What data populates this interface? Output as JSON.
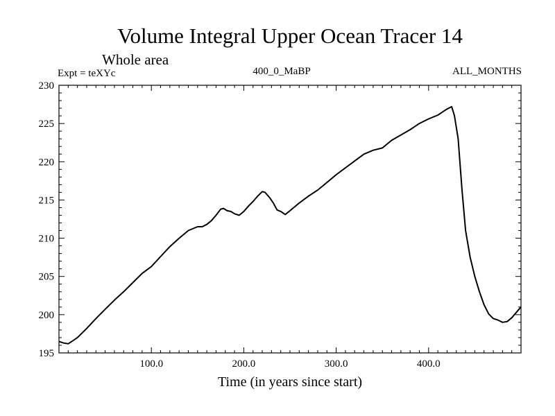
{
  "chart_data": {
    "type": "line",
    "title": "Volume Integral Upper Ocean Tracer 14",
    "subtitle": "Whole area",
    "experiment_label": "Expt = teXYc",
    "center_label": "400_0_MaBP",
    "right_label": "ALL_MONTHS",
    "xlabel": "Time (in years since start)",
    "ylabel": "",
    "xlim": [
      0,
      500
    ],
    "ylim": [
      195,
      230
    ],
    "x_ticks": [
      100,
      200,
      300,
      400
    ],
    "x_tick_labels": [
      "100.0",
      "200.0",
      "300.0",
      "400.0"
    ],
    "y_ticks": [
      195,
      200,
      205,
      210,
      215,
      220,
      225,
      230
    ],
    "y_tick_labels": [
      "195",
      "200",
      "205",
      "210",
      "215",
      "220",
      "225",
      "230"
    ],
    "grid": false,
    "legend": "none",
    "line_color": "#000000",
    "series": [
      {
        "x": [
          0,
          5,
          10,
          15,
          20,
          30,
          40,
          50,
          60,
          70,
          80,
          90,
          100,
          110,
          120,
          130,
          140,
          150,
          155,
          160,
          165,
          170,
          175,
          178,
          182,
          186,
          190,
          195,
          200,
          205,
          210,
          215,
          220,
          223,
          228,
          232,
          236,
          240,
          245,
          250,
          260,
          270,
          280,
          290,
          300,
          310,
          320,
          330,
          340,
          350,
          360,
          370,
          380,
          390,
          400,
          410,
          415,
          420,
          425,
          428,
          432,
          436,
          440,
          445,
          450,
          455,
          460,
          465,
          470,
          475,
          480,
          485,
          490,
          495,
          500
        ],
        "y": [
          196.5,
          196.3,
          196.2,
          196.6,
          197.0,
          198.2,
          199.5,
          200.7,
          201.9,
          203.0,
          204.2,
          205.4,
          206.3,
          207.6,
          208.9,
          210.0,
          211.0,
          211.5,
          211.5,
          211.8,
          212.3,
          213.0,
          213.8,
          213.9,
          213.6,
          213.5,
          213.2,
          213.0,
          213.5,
          214.2,
          214.8,
          215.5,
          216.1,
          216.0,
          215.3,
          214.6,
          213.7,
          213.5,
          213.1,
          213.6,
          214.6,
          215.5,
          216.3,
          217.3,
          218.3,
          219.2,
          220.1,
          221.0,
          221.5,
          221.8,
          222.8,
          223.5,
          224.2,
          225.0,
          225.6,
          226.1,
          226.5,
          226.9,
          227.2,
          226.0,
          223.0,
          216.5,
          211.0,
          207.5,
          205.0,
          203.0,
          201.3,
          200.1,
          199.5,
          199.3,
          199.0,
          199.1,
          199.6,
          200.3,
          201.0
        ]
      }
    ]
  }
}
